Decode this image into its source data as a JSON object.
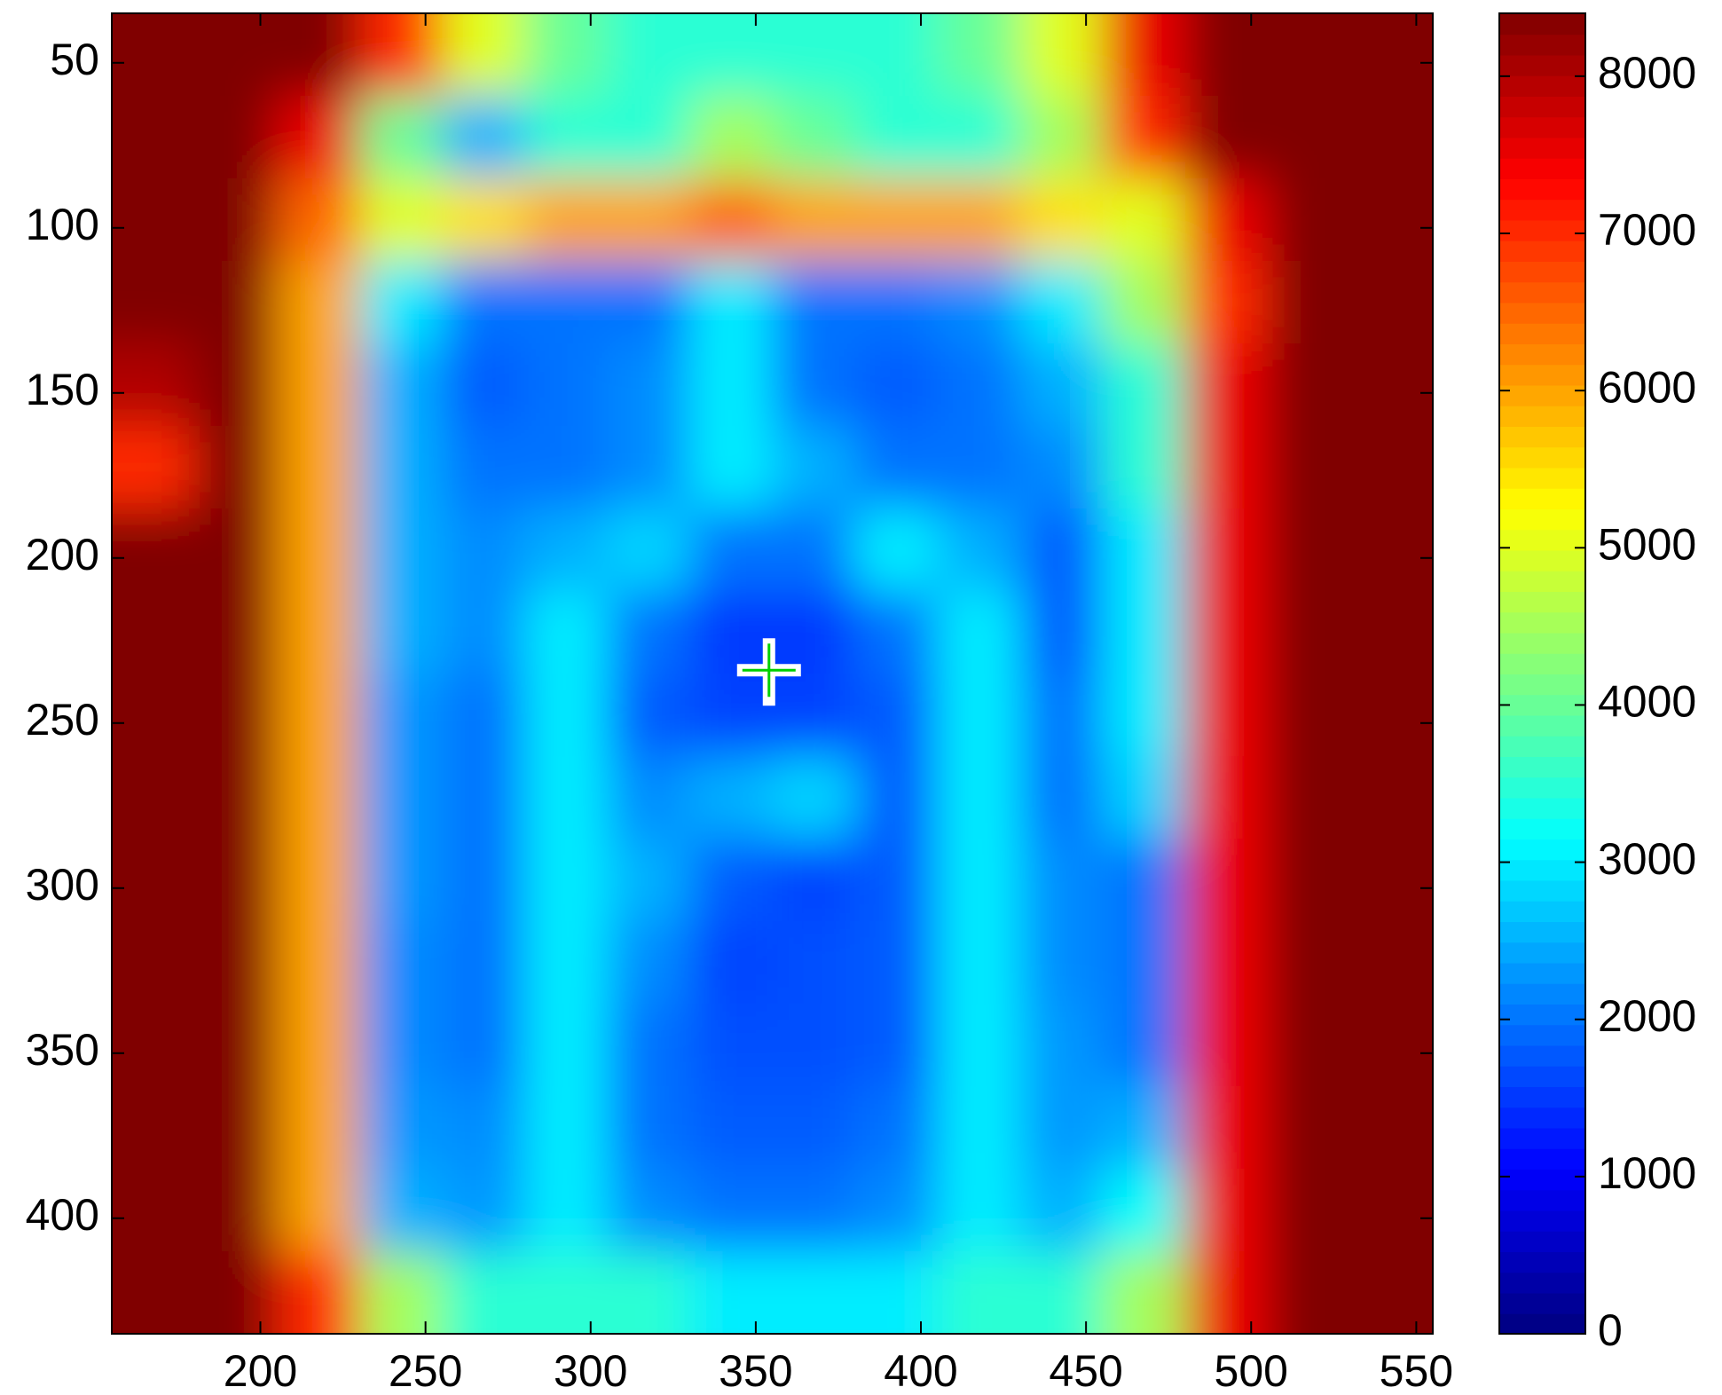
{
  "chart_data": {
    "type": "heatmap",
    "colormap": "jet",
    "x": [
      167.5,
      192.5,
      217.5,
      242.5,
      267.5,
      292.5,
      317.5,
      342.5,
      367.5,
      392.5,
      417.5,
      442.5,
      467.5,
      492.5,
      517.5,
      542.5
    ],
    "y": [
      47.5,
      72.5,
      97.5,
      122.5,
      147.5,
      172.5,
      197.5,
      222.5,
      247.5,
      272.5,
      297.5,
      322.5,
      347.5,
      372.5,
      397.5,
      422.5
    ],
    "z": [
      [
        8400,
        8400,
        8400,
        7000,
        5000,
        4000,
        3500,
        3500,
        3500,
        3500,
        4000,
        5000,
        7500,
        8400,
        8400,
        8400
      ],
      [
        8400,
        8400,
        7500,
        4000,
        2500,
        3500,
        3500,
        4500,
        4000,
        3500,
        3500,
        4500,
        7000,
        8400,
        8400,
        8400
      ],
      [
        8400,
        8400,
        6500,
        5000,
        5500,
        6000,
        6000,
        6500,
        6000,
        6000,
        6000,
        5500,
        5000,
        7500,
        8400,
        8400
      ],
      [
        8400,
        8400,
        6000,
        3000,
        2000,
        2000,
        2000,
        3000,
        2000,
        2000,
        2200,
        3000,
        4500,
        7000,
        8400,
        8400
      ],
      [
        8000,
        8400,
        6000,
        2500,
        1800,
        2000,
        2200,
        3000,
        2000,
        1800,
        2000,
        2500,
        3500,
        7500,
        8400,
        8400
      ],
      [
        7000,
        8400,
        6000,
        2500,
        2000,
        2000,
        2200,
        3000,
        2500,
        2000,
        2000,
        2200,
        3500,
        7500,
        8400,
        8400
      ],
      [
        8400,
        8400,
        6000,
        2500,
        2200,
        2500,
        2800,
        2000,
        2000,
        3000,
        2500,
        1800,
        3000,
        7500,
        8400,
        8400
      ],
      [
        8400,
        8400,
        6000,
        2500,
        2200,
        3000,
        2000,
        1500,
        1500,
        2000,
        3000,
        1800,
        3000,
        7500,
        8400,
        8400
      ],
      [
        8400,
        8400,
        6000,
        2300,
        2000,
        3000,
        1800,
        1600,
        1600,
        1800,
        3000,
        2000,
        3000,
        7500,
        8400,
        8400
      ],
      [
        8400,
        8400,
        6000,
        2300,
        2000,
        3000,
        2200,
        2500,
        2800,
        1800,
        3000,
        2000,
        2800,
        7500,
        8400,
        8400
      ],
      [
        8400,
        8400,
        6000,
        2300,
        2000,
        3000,
        2500,
        1800,
        1600,
        1800,
        3000,
        2200,
        2000,
        7500,
        8400,
        8400
      ],
      [
        8400,
        8400,
        6000,
        2200,
        2000,
        3000,
        2200,
        1600,
        1700,
        1800,
        3000,
        2200,
        2000,
        7500,
        8400,
        8400
      ],
      [
        8400,
        8400,
        6000,
        2200,
        2000,
        3000,
        2000,
        1700,
        1700,
        1800,
        3000,
        2300,
        2000,
        7500,
        8400,
        8400
      ],
      [
        8400,
        8400,
        6000,
        2300,
        2200,
        3000,
        2000,
        1800,
        1800,
        2000,
        3000,
        2300,
        2500,
        7500,
        8400,
        8400
      ],
      [
        8400,
        8400,
        6000,
        2500,
        2300,
        3000,
        2200,
        2000,
        2000,
        2200,
        3000,
        2500,
        3200,
        7500,
        8400,
        8400
      ],
      [
        8400,
        8400,
        7000,
        4500,
        3500,
        3500,
        3500,
        3000,
        3000,
        3000,
        3500,
        3500,
        4500,
        7500,
        8400,
        8400
      ]
    ],
    "marker": {
      "x": 354,
      "y": 234
    },
    "xlim": [
      155,
      555
    ],
    "ylim": [
      435,
      35
    ],
    "clim": [
      0,
      8400
    ],
    "xticks": [
      200,
      250,
      300,
      350,
      400,
      450,
      500,
      550
    ],
    "yticks": [
      50,
      100,
      150,
      200,
      250,
      300,
      350,
      400
    ],
    "cticks": [
      0,
      1000,
      2000,
      3000,
      4000,
      5000,
      6000,
      7000,
      8000
    ]
  }
}
